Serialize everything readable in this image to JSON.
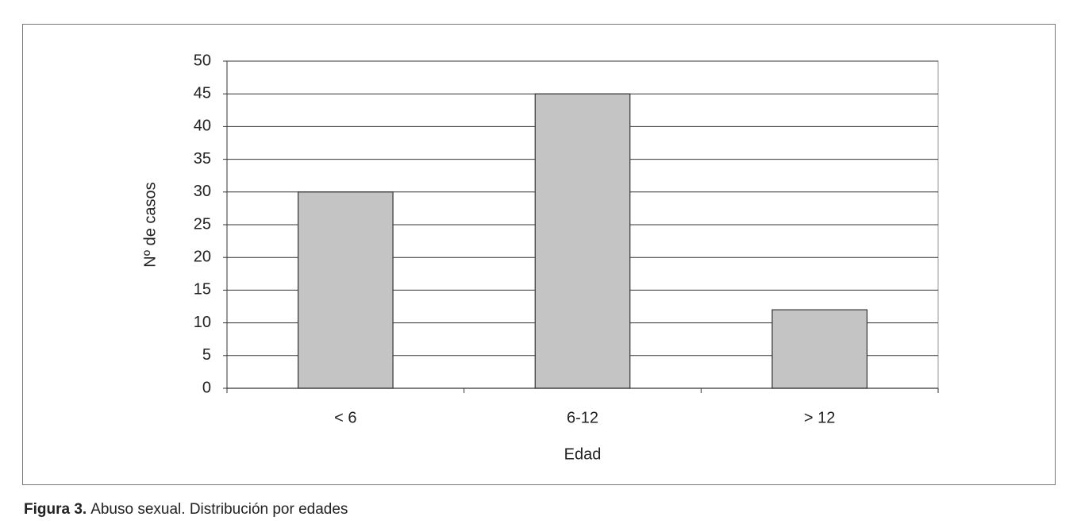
{
  "chart_data": {
    "type": "bar",
    "x_label": "Edad",
    "y_label": "Nº de casos",
    "categories": [
      "< 6",
      "6-12",
      "> 12"
    ],
    "values": [
      30,
      45,
      12
    ],
    "color": "#c4c4c4",
    "ylim": [
      0,
      50
    ],
    "yticks": [
      0,
      5,
      10,
      15,
      20,
      25,
      30,
      35,
      40,
      45,
      50
    ],
    "grid": true,
    "caption": {
      "label": "Figura 3.",
      "text": "Abuso sexual. Distribución por edades"
    }
  }
}
